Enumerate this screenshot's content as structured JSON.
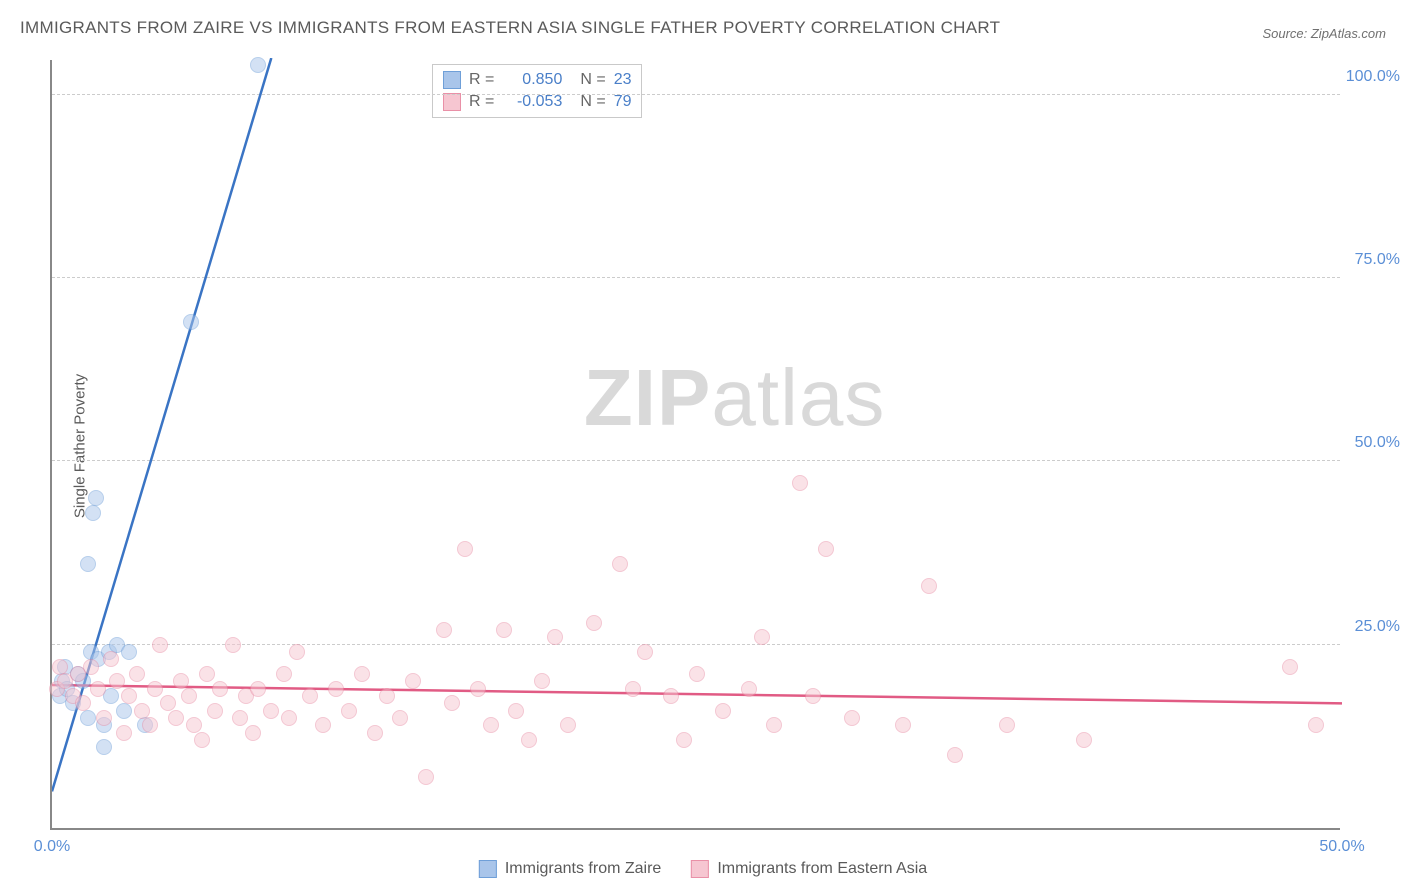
{
  "title": "IMMIGRANTS FROM ZAIRE VS IMMIGRANTS FROM EASTERN ASIA SINGLE FATHER POVERTY CORRELATION CHART",
  "source_prefix": "Source: ",
  "source_name": "ZipAtlas.com",
  "y_axis_label": "Single Father Poverty",
  "watermark_bold": "ZIP",
  "watermark_light": "atlas",
  "chart": {
    "type": "scatter",
    "background_color": "#ffffff",
    "grid_color": "#cccccc",
    "axis_color": "#888888",
    "xlim": [
      0,
      50
    ],
    "ylim": [
      0,
      105
    ],
    "x_ticks": [
      {
        "value": 0,
        "label": "0.0%"
      },
      {
        "value": 50,
        "label": "50.0%"
      }
    ],
    "y_ticks": [
      {
        "value": 25,
        "label": "25.0%"
      },
      {
        "value": 50,
        "label": "50.0%"
      },
      {
        "value": 75,
        "label": "75.0%"
      },
      {
        "value": 100,
        "label": "100.0%"
      }
    ],
    "tick_label_color": "#5b8fd6",
    "tick_fontsize": 16,
    "point_radius": 8,
    "point_opacity": 0.5,
    "series": [
      {
        "name": "Immigrants from Zaire",
        "color_fill": "#a9c5ea",
        "color_stroke": "#6f9fd8",
        "trend_color": "#3a74c4",
        "trend_width": 2.5,
        "trend": {
          "x1": 0,
          "y1": 5,
          "x2": 8.5,
          "y2": 105
        },
        "R": "0.850",
        "N": "23",
        "points": [
          [
            0.3,
            18
          ],
          [
            0.4,
            20
          ],
          [
            0.5,
            22
          ],
          [
            0.6,
            19
          ],
          [
            0.8,
            17
          ],
          [
            1.0,
            21
          ],
          [
            1.2,
            20
          ],
          [
            1.4,
            15
          ],
          [
            1.5,
            24
          ],
          [
            1.8,
            23
          ],
          [
            2.0,
            14
          ],
          [
            2.2,
            24
          ],
          [
            2.5,
            25
          ],
          [
            1.4,
            36
          ],
          [
            1.6,
            43
          ],
          [
            1.7,
            45
          ],
          [
            2.0,
            11
          ],
          [
            2.3,
            18
          ],
          [
            2.8,
            16
          ],
          [
            3.0,
            24
          ],
          [
            3.6,
            14
          ],
          [
            5.4,
            69
          ],
          [
            8.0,
            104
          ]
        ]
      },
      {
        "name": "Immigrants from Eastern Asia",
        "color_fill": "#f6c6d1",
        "color_stroke": "#e990a7",
        "trend_color": "#e15b84",
        "trend_width": 2.5,
        "trend": {
          "x1": 0,
          "y1": 19.5,
          "x2": 50,
          "y2": 17
        },
        "R": "-0.053",
        "N": "79",
        "points": [
          [
            0.2,
            19
          ],
          [
            0.3,
            22
          ],
          [
            0.5,
            20
          ],
          [
            0.8,
            18
          ],
          [
            1.0,
            21
          ],
          [
            1.2,
            17
          ],
          [
            1.5,
            22
          ],
          [
            1.8,
            19
          ],
          [
            2.0,
            15
          ],
          [
            2.3,
            23
          ],
          [
            2.5,
            20
          ],
          [
            2.8,
            13
          ],
          [
            3.0,
            18
          ],
          [
            3.3,
            21
          ],
          [
            3.5,
            16
          ],
          [
            3.8,
            14
          ],
          [
            4.0,
            19
          ],
          [
            4.2,
            25
          ],
          [
            4.5,
            17
          ],
          [
            4.8,
            15
          ],
          [
            5.0,
            20
          ],
          [
            5.3,
            18
          ],
          [
            5.5,
            14
          ],
          [
            5.8,
            12
          ],
          [
            6.0,
            21
          ],
          [
            6.3,
            16
          ],
          [
            6.5,
            19
          ],
          [
            7.0,
            25
          ],
          [
            7.3,
            15
          ],
          [
            7.5,
            18
          ],
          [
            7.8,
            13
          ],
          [
            8.0,
            19
          ],
          [
            8.5,
            16
          ],
          [
            9.0,
            21
          ],
          [
            9.2,
            15
          ],
          [
            9.5,
            24
          ],
          [
            10.0,
            18
          ],
          [
            10.5,
            14
          ],
          [
            11.0,
            19
          ],
          [
            11.5,
            16
          ],
          [
            12.0,
            21
          ],
          [
            12.5,
            13
          ],
          [
            13.0,
            18
          ],
          [
            13.5,
            15
          ],
          [
            14.0,
            20
          ],
          [
            14.5,
            7
          ],
          [
            15.2,
            27
          ],
          [
            15.5,
            17
          ],
          [
            16.0,
            38
          ],
          [
            16.5,
            19
          ],
          [
            17.0,
            14
          ],
          [
            17.5,
            27
          ],
          [
            18.0,
            16
          ],
          [
            18.5,
            12
          ],
          [
            19.0,
            20
          ],
          [
            19.5,
            26
          ],
          [
            20.0,
            14
          ],
          [
            21.0,
            28
          ],
          [
            22.0,
            36
          ],
          [
            22.5,
            19
          ],
          [
            23.0,
            24
          ],
          [
            24.0,
            18
          ],
          [
            24.5,
            12
          ],
          [
            25.0,
            21
          ],
          [
            26.0,
            16
          ],
          [
            27.0,
            19
          ],
          [
            27.5,
            26
          ],
          [
            28.0,
            14
          ],
          [
            29.0,
            47
          ],
          [
            29.5,
            18
          ],
          [
            30.0,
            38
          ],
          [
            31.0,
            15
          ],
          [
            33.0,
            14
          ],
          [
            34.0,
            33
          ],
          [
            35.0,
            10
          ],
          [
            37.0,
            14
          ],
          [
            40.0,
            12
          ],
          [
            48.0,
            22
          ],
          [
            49.0,
            14
          ]
        ]
      }
    ]
  },
  "legend_top": {
    "r_label": "R",
    "n_label": "N",
    "eq": "="
  },
  "legend_bottom_items": [
    {
      "label": "Immigrants from Zaire",
      "fill": "#a9c5ea",
      "stroke": "#6f9fd8"
    },
    {
      "label": "Immigrants from Eastern Asia",
      "fill": "#f6c6d1",
      "stroke": "#e990a7"
    }
  ]
}
